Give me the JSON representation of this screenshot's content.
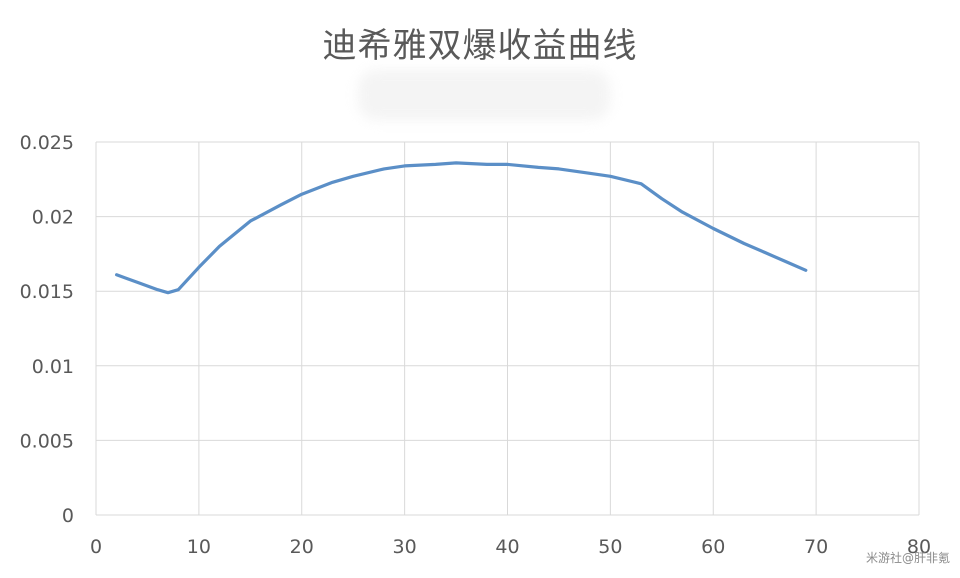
{
  "chart_data": {
    "type": "line",
    "title": "迪希雅双爆收益曲线",
    "xlabel": "",
    "ylabel": "",
    "xlim": [
      0,
      80
    ],
    "ylim": [
      0,
      0.025
    ],
    "x_ticks": [
      "0",
      "10",
      "20",
      "30",
      "40",
      "50",
      "60",
      "70",
      "80"
    ],
    "y_ticks": [
      "0",
      "0.005",
      "0.01",
      "0.015",
      "0.02",
      "0.025"
    ],
    "grid": true,
    "legend": "none",
    "series": [
      {
        "color": "#5B8FC7",
        "points": [
          [
            2,
            0.0161
          ],
          [
            4,
            0.0156
          ],
          [
            6,
            0.0151
          ],
          [
            7,
            0.0149
          ],
          [
            8,
            0.0151
          ],
          [
            10,
            0.0166
          ],
          [
            12,
            0.018
          ],
          [
            15,
            0.0197
          ],
          [
            18,
            0.0208
          ],
          [
            20,
            0.0215
          ],
          [
            23,
            0.0223
          ],
          [
            25,
            0.0227
          ],
          [
            28,
            0.0232
          ],
          [
            30,
            0.0234
          ],
          [
            33,
            0.0235
          ],
          [
            35,
            0.0236
          ],
          [
            38,
            0.0235
          ],
          [
            40,
            0.0235
          ],
          [
            43,
            0.0233
          ],
          [
            45,
            0.0232
          ],
          [
            48,
            0.0229
          ],
          [
            50,
            0.0227
          ],
          [
            53,
            0.0222
          ],
          [
            55,
            0.0212
          ],
          [
            57,
            0.0203
          ],
          [
            60,
            0.0192
          ],
          [
            63,
            0.0182
          ],
          [
            65,
            0.0176
          ],
          [
            67,
            0.017
          ],
          [
            69,
            0.0164
          ]
        ]
      }
    ]
  },
  "watermark": "米游社@肝非氪"
}
